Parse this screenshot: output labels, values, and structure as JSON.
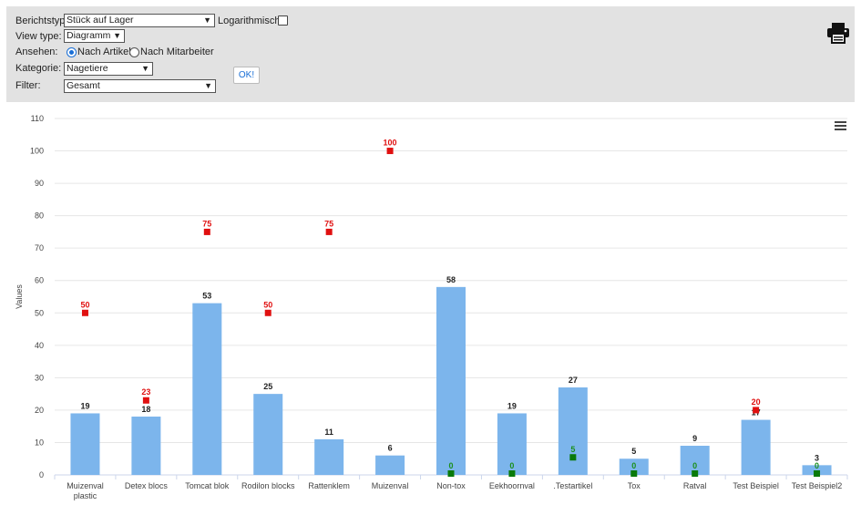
{
  "toolbar": {
    "report_type_label": "Berichtstyp:",
    "report_type_value": "Stück auf Lager",
    "log_label": "Logarithmisch",
    "view_type_label": "View type:",
    "view_type_value": "Diagramm",
    "view_label": "Ansehen:",
    "view_option_article": "Nach Artikel",
    "view_option_employee": "Nach Mitarbeiter",
    "view_selected": "Nach Artikel",
    "category_label": "Kategorie:",
    "category_value": "Nagetiere",
    "ok_label": "OK!",
    "filter_label": "Filter:",
    "filter_value": "Gesamt",
    "logarithmic_checked": false,
    "print_icon": "printer-icon",
    "menu_icon": "hamburger-menu-icon"
  },
  "chart_data": {
    "type": "bar",
    "ylabel": "Values",
    "ylim": [
      0,
      110
    ],
    "yticks": [
      "0",
      "10",
      "20",
      "30",
      "40",
      "50",
      "60",
      "70",
      "80",
      "90",
      "100",
      "110"
    ],
    "categories": [
      "Muizenval plastic",
      "Detex blocs",
      "Tomcat blok",
      "Rodilon blocks",
      "Rattenklem",
      "Muizenval",
      "Non-tox",
      "Eekhoornval",
      ".Testartikel",
      "Tox",
      "Ratval",
      "Test Beispiel",
      "Test Beispiel2"
    ],
    "category_lines": [
      [
        "Muizenval",
        "plastic"
      ],
      [
        "Detex blocs"
      ],
      [
        "Tomcat blok"
      ],
      [
        "Rodilon blocks"
      ],
      [
        "Rattenklem"
      ],
      [
        "Muizenval"
      ],
      [
        "Non-tox"
      ],
      [
        "Eekhoornval"
      ],
      [
        ".Testartikel"
      ],
      [
        "Tox"
      ],
      [
        "Ratval"
      ],
      [
        "Test Beispiel"
      ],
      [
        "Test Beispiel2"
      ]
    ],
    "bar_values": [
      19,
      18,
      53,
      25,
      11,
      6,
      58,
      19,
      27,
      5,
      9,
      17,
      3
    ],
    "bar_color": "#7cb5ec",
    "red_markers": [
      {
        "index": 0,
        "value": 50
      },
      {
        "index": 1,
        "value": 23
      },
      {
        "index": 2,
        "value": 75
      },
      {
        "index": 3,
        "value": 50
      },
      {
        "index": 4,
        "value": 75
      },
      {
        "index": 5,
        "value": 100
      },
      {
        "index": 11,
        "value": 20
      }
    ],
    "green_markers": [
      {
        "index": 6,
        "value": 0
      },
      {
        "index": 7,
        "value": 0
      },
      {
        "index": 8,
        "value": 5
      },
      {
        "index": 9,
        "value": 0
      },
      {
        "index": 10,
        "value": 0
      },
      {
        "index": 12,
        "value": 0
      }
    ],
    "red_color": "#e01010",
    "green_color": "#0a7a0a",
    "grid": true
  }
}
